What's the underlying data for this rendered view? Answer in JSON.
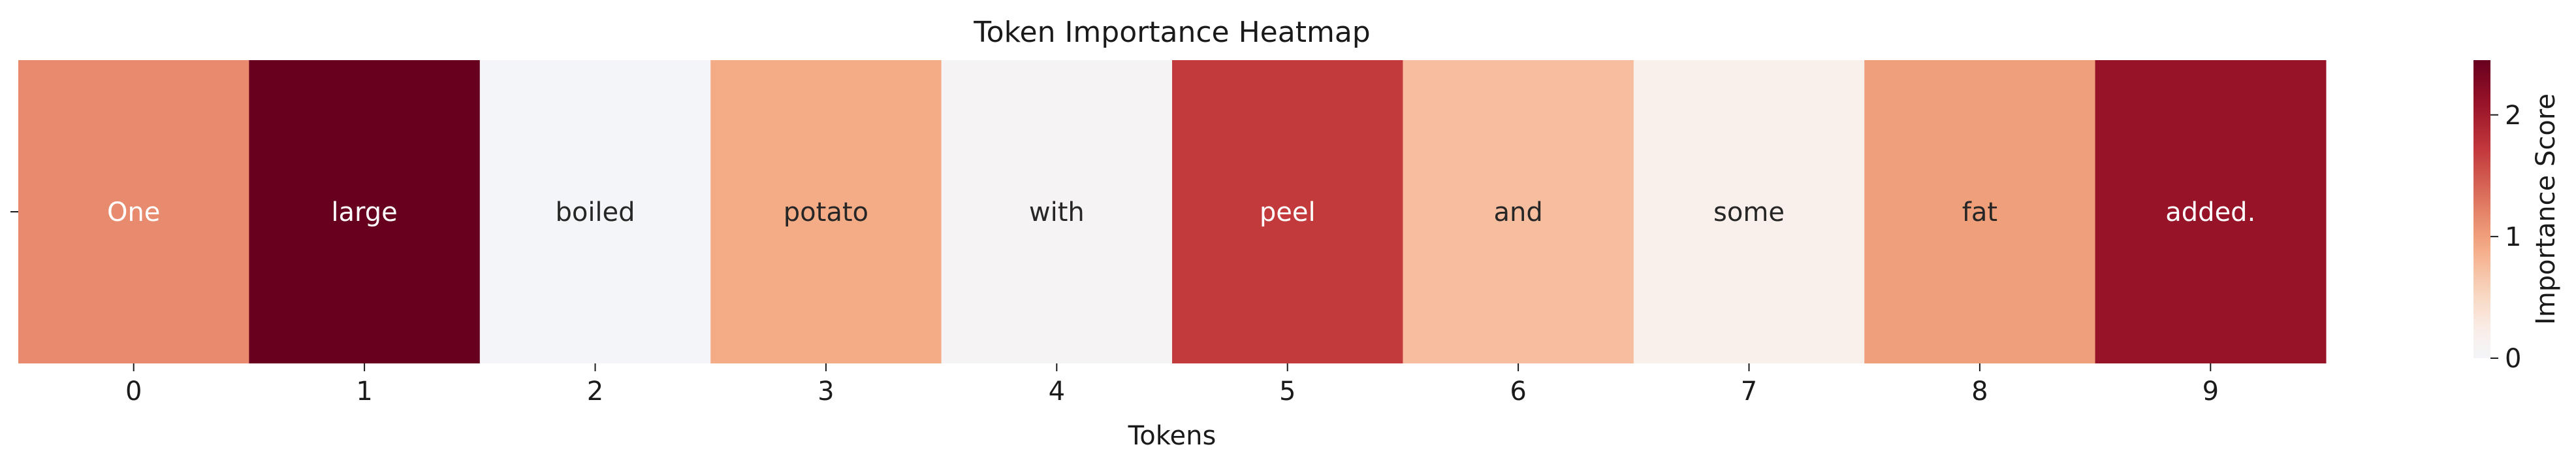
{
  "chart_data": {
    "type": "heatmap",
    "title": "Token Importance Heatmap",
    "xlabel": "Tokens",
    "ylabel": "",
    "x": [
      0,
      1,
      2,
      3,
      4,
      5,
      6,
      7,
      8,
      9
    ],
    "y_tick_labels": [
      ""
    ],
    "tokens": [
      "One",
      "large",
      "boiled",
      "potato",
      "with",
      "peel",
      "and",
      "some",
      "fat",
      "added."
    ],
    "values": [
      [
        1.15,
        2.45,
        0.0,
        0.9,
        0.08,
        1.7,
        0.75,
        0.2,
        1.0,
        2.1
      ]
    ],
    "colormap": "RdBu_r (white → dark red)",
    "colorbar": {
      "label": "Importance Score",
      "range": [
        0,
        2.45
      ],
      "ticks": [
        0,
        1,
        2
      ]
    },
    "grid": false,
    "annotations": "token text shown inside each cell"
  }
}
